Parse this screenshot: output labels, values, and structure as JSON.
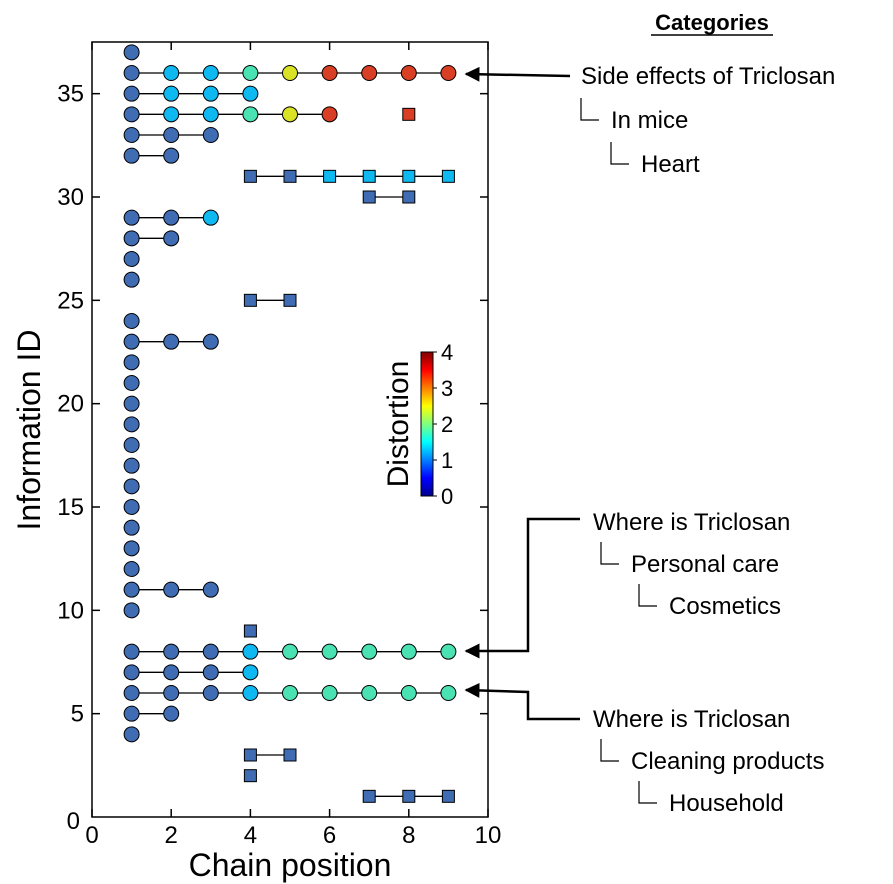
{
  "chart_data": {
    "type": "scatter",
    "xlabel": "Chain position",
    "ylabel": "Information ID",
    "xlim": [
      0,
      10
    ],
    "ylim": [
      0,
      37.5
    ],
    "xticks": [
      0,
      2,
      4,
      6,
      8,
      10
    ],
    "yticks": [
      5,
      10,
      15,
      20,
      25,
      30,
      35
    ],
    "colorbar": {
      "title": "Distortion",
      "range": [
        0,
        4
      ],
      "ticks": [
        0,
        1,
        2,
        3,
        4
      ]
    },
    "series": [
      {
        "marker": "circle",
        "id": 37,
        "points": [
          [
            1,
            0
          ]
        ]
      },
      {
        "marker": "circle",
        "id": 36,
        "points": [
          [
            1,
            0
          ],
          [
            2,
            1.3
          ],
          [
            3,
            1.3
          ],
          [
            4,
            1.8
          ],
          [
            5,
            2.5
          ],
          [
            6,
            3.3
          ],
          [
            7,
            3.3
          ],
          [
            8,
            3.3
          ],
          [
            9,
            3.3
          ]
        ]
      },
      {
        "marker": "circle",
        "id": 35,
        "points": [
          [
            1,
            0
          ],
          [
            2,
            1.3
          ],
          [
            3,
            1.3
          ],
          [
            4,
            1.3
          ]
        ]
      },
      {
        "marker": "circle",
        "id": 34,
        "points": [
          [
            1,
            0
          ],
          [
            2,
            1.3
          ],
          [
            3,
            1.3
          ],
          [
            4,
            1.8
          ],
          [
            5,
            2.5
          ],
          [
            6,
            3.3
          ]
        ]
      },
      {
        "marker": "square",
        "id": 34,
        "points": [
          [
            8,
            3.3
          ]
        ]
      },
      {
        "marker": "circle",
        "id": 33,
        "points": [
          [
            1,
            0
          ],
          [
            2,
            0
          ],
          [
            3,
            0
          ]
        ]
      },
      {
        "marker": "circle",
        "id": 32,
        "points": [
          [
            1,
            0
          ],
          [
            2,
            0
          ]
        ]
      },
      {
        "marker": "square",
        "id": 31,
        "points": [
          [
            4,
            0
          ],
          [
            5,
            0
          ],
          [
            6,
            1.3
          ],
          [
            7,
            1.3
          ],
          [
            8,
            1.3
          ],
          [
            9,
            1.3
          ]
        ]
      },
      {
        "marker": "square",
        "id": 30,
        "points": [
          [
            7,
            0
          ],
          [
            8,
            0
          ]
        ]
      },
      {
        "marker": "circle",
        "id": 29,
        "points": [
          [
            1,
            0
          ],
          [
            2,
            0
          ],
          [
            3,
            1.3
          ]
        ]
      },
      {
        "marker": "circle",
        "id": 28,
        "points": [
          [
            1,
            0
          ],
          [
            2,
            0
          ]
        ]
      },
      {
        "marker": "circle",
        "id": 27,
        "points": [
          [
            1,
            0
          ]
        ]
      },
      {
        "marker": "circle",
        "id": 26,
        "points": [
          [
            1,
            0
          ]
        ]
      },
      {
        "marker": "square",
        "id": 25,
        "points": [
          [
            4,
            0
          ],
          [
            5,
            0
          ]
        ]
      },
      {
        "marker": "circle",
        "id": 24,
        "points": [
          [
            1,
            0
          ]
        ]
      },
      {
        "marker": "circle",
        "id": 23,
        "points": [
          [
            1,
            0
          ],
          [
            2,
            0
          ],
          [
            3,
            0
          ]
        ]
      },
      {
        "marker": "circle",
        "id": 22,
        "points": [
          [
            1,
            0
          ]
        ]
      },
      {
        "marker": "circle",
        "id": 21,
        "points": [
          [
            1,
            0
          ]
        ]
      },
      {
        "marker": "circle",
        "id": 20,
        "points": [
          [
            1,
            0
          ]
        ]
      },
      {
        "marker": "circle",
        "id": 19,
        "points": [
          [
            1,
            0
          ]
        ]
      },
      {
        "marker": "circle",
        "id": 18,
        "points": [
          [
            1,
            0
          ]
        ]
      },
      {
        "marker": "circle",
        "id": 17,
        "points": [
          [
            1,
            0
          ]
        ]
      },
      {
        "marker": "circle",
        "id": 16,
        "points": [
          [
            1,
            0
          ]
        ]
      },
      {
        "marker": "circle",
        "id": 15,
        "points": [
          [
            1,
            0
          ]
        ]
      },
      {
        "marker": "circle",
        "id": 14,
        "points": [
          [
            1,
            0
          ]
        ]
      },
      {
        "marker": "circle",
        "id": 13,
        "points": [
          [
            1,
            0
          ]
        ]
      },
      {
        "marker": "circle",
        "id": 12,
        "points": [
          [
            1,
            0
          ]
        ]
      },
      {
        "marker": "circle",
        "id": 11,
        "points": [
          [
            1,
            0
          ],
          [
            2,
            0
          ],
          [
            3,
            0
          ]
        ]
      },
      {
        "marker": "circle",
        "id": 10,
        "points": [
          [
            1,
            0
          ]
        ]
      },
      {
        "marker": "square",
        "id": 9,
        "points": [
          [
            4,
            0
          ]
        ]
      },
      {
        "marker": "circle",
        "id": 8,
        "points": [
          [
            1,
            0
          ],
          [
            2,
            0
          ],
          [
            3,
            0
          ],
          [
            4,
            1.3
          ],
          [
            5,
            1.8
          ],
          [
            6,
            1.8
          ],
          [
            7,
            1.8
          ],
          [
            8,
            1.8
          ],
          [
            9,
            1.8
          ]
        ]
      },
      {
        "marker": "circle",
        "id": 7,
        "points": [
          [
            1,
            0
          ],
          [
            2,
            0
          ],
          [
            3,
            0
          ],
          [
            4,
            1.3
          ]
        ]
      },
      {
        "marker": "circle",
        "id": 6,
        "points": [
          [
            1,
            0
          ],
          [
            2,
            0
          ],
          [
            3,
            0
          ],
          [
            4,
            1.3
          ],
          [
            5,
            1.8
          ],
          [
            6,
            1.8
          ],
          [
            7,
            1.8
          ],
          [
            8,
            1.8
          ],
          [
            9,
            1.8
          ]
        ]
      },
      {
        "marker": "circle",
        "id": 5,
        "points": [
          [
            1,
            0
          ],
          [
            2,
            0
          ]
        ]
      },
      {
        "marker": "circle",
        "id": 4,
        "points": [
          [
            1,
            0
          ]
        ]
      },
      {
        "marker": "square",
        "id": 3,
        "points": [
          [
            4,
            0
          ],
          [
            5,
            0
          ]
        ]
      },
      {
        "marker": "square",
        "id": 2,
        "points": [
          [
            4,
            0
          ]
        ]
      },
      {
        "marker": "square",
        "id": 1,
        "points": [
          [
            7,
            0
          ],
          [
            8,
            0
          ],
          [
            9,
            0
          ]
        ]
      }
    ]
  },
  "categories": {
    "title": "Categories",
    "groups": [
      {
        "target_id": 36,
        "lines": [
          "Side effects of Triclosan",
          "In mice",
          "Heart"
        ]
      },
      {
        "target_id": 8,
        "lines": [
          "Where is Triclosan",
          "Personal care",
          "Cosmetics"
        ]
      },
      {
        "target_id": 6,
        "lines": [
          "Where is Triclosan",
          "Cleaning products",
          "Household"
        ]
      }
    ]
  }
}
